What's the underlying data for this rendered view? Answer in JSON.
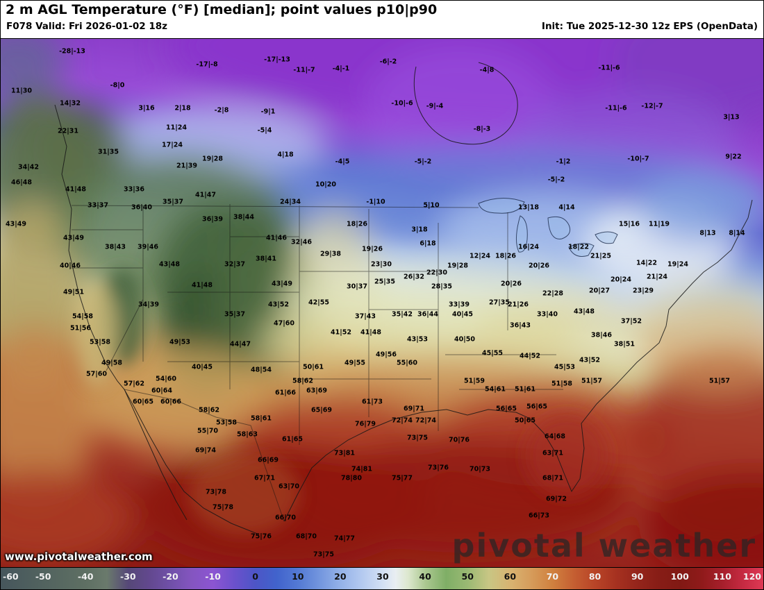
{
  "header": {
    "title": "2 m AGL Temperature (°F) [median]; point values p10|p90",
    "valid": "F078 Valid: Fri 2026-01-02 18z",
    "init": "Init: Tue 2025-12-30 12z EPS (OpenData)"
  },
  "watermark": {
    "site": "www.pivotalweather.com",
    "brand": "pivotal weather"
  },
  "colorbar": {
    "min": -60,
    "max": 120,
    "unit": "°F",
    "tick_values": [
      -60,
      -50,
      -40,
      -30,
      -20,
      -10,
      0,
      10,
      20,
      30,
      40,
      50,
      60,
      70,
      80,
      90,
      100,
      110,
      120
    ],
    "stops": [
      [
        0,
        "#46565c"
      ],
      [
        5.6,
        "#52635f"
      ],
      [
        11.1,
        "#5e6f63"
      ],
      [
        13.9,
        "#6a7a6c"
      ],
      [
        16.7,
        "#564878"
      ],
      [
        19.4,
        "#62488e"
      ],
      [
        22.2,
        "#7050a8"
      ],
      [
        25,
        "#8455c0"
      ],
      [
        27.8,
        "#8c55d2"
      ],
      [
        30.6,
        "#6b51cc"
      ],
      [
        33.3,
        "#4d55c6"
      ],
      [
        36.1,
        "#4163cc"
      ],
      [
        38.9,
        "#5379d4"
      ],
      [
        41.7,
        "#7295de"
      ],
      [
        44.4,
        "#93b1e8"
      ],
      [
        47.2,
        "#b3c9f0"
      ],
      [
        50,
        "#d3e0f4"
      ],
      [
        51.7,
        "#e9eef2"
      ],
      [
        53.3,
        "#dde8cf"
      ],
      [
        55.6,
        "#abc890"
      ],
      [
        58.3,
        "#7fae66"
      ],
      [
        61.1,
        "#9ab973"
      ],
      [
        63.9,
        "#c8c684"
      ],
      [
        66.7,
        "#d8b371"
      ],
      [
        69.4,
        "#d69c5b"
      ],
      [
        72.2,
        "#d0813f"
      ],
      [
        75,
        "#c55f32"
      ],
      [
        77.8,
        "#b84427"
      ],
      [
        80.6,
        "#a63120"
      ],
      [
        83.3,
        "#95251b"
      ],
      [
        86.1,
        "#871d16"
      ],
      [
        88.9,
        "#811914"
      ],
      [
        91.7,
        "#8f1a1a"
      ],
      [
        94.4,
        "#a61f2b"
      ],
      [
        97.2,
        "#c62a42"
      ],
      [
        100,
        "#e03a56"
      ]
    ]
  },
  "map": {
    "point_values": [
      [
        103,
        73,
        "-28|-13"
      ],
      [
        297,
        92,
        "-17|-8"
      ],
      [
        398,
        85,
        "-17|-13"
      ],
      [
        437,
        100,
        "-11|-7"
      ],
      [
        490,
        98,
        "-4|-1"
      ],
      [
        558,
        88,
        "-6|-2"
      ],
      [
        700,
        100,
        "-4|8"
      ],
      [
        876,
        97,
        "-11|-6"
      ],
      [
        30,
        130,
        "11|30"
      ],
      [
        168,
        122,
        "-8|0"
      ],
      [
        100,
        148,
        "14|32"
      ],
      [
        210,
        155,
        "3|16"
      ],
      [
        262,
        155,
        "2|18"
      ],
      [
        318,
        158,
        "-2|8"
      ],
      [
        385,
        160,
        "-9|1"
      ],
      [
        97,
        188,
        "22|31"
      ],
      [
        253,
        183,
        "11|24"
      ],
      [
        380,
        187,
        "-5|4"
      ],
      [
        578,
        148,
        "-10|-6"
      ],
      [
        625,
        152,
        "-9|-4"
      ],
      [
        886,
        155,
        "-11|-6"
      ],
      [
        938,
        152,
        "-12|-7"
      ],
      [
        1052,
        168,
        "3|13"
      ],
      [
        155,
        218,
        "31|35"
      ],
      [
        247,
        208,
        "17|24"
      ],
      [
        268,
        238,
        "21|39"
      ],
      [
        305,
        228,
        "19|28"
      ],
      [
        410,
        222,
        "4|18"
      ],
      [
        693,
        185,
        "-8|-3"
      ],
      [
        608,
        232,
        "-5|-2"
      ],
      [
        810,
        232,
        "-1|2"
      ],
      [
        918,
        228,
        "-10|-7"
      ],
      [
        1055,
        225,
        "9|22"
      ],
      [
        492,
        232,
        "-4|5"
      ],
      [
        40,
        240,
        "34|42"
      ],
      [
        30,
        262,
        "46|48"
      ],
      [
        108,
        272,
        "41|48"
      ],
      [
        192,
        272,
        "33|36"
      ],
      [
        140,
        295,
        "33|37"
      ],
      [
        203,
        298,
        "36|40"
      ],
      [
        248,
        290,
        "35|37"
      ],
      [
        295,
        280,
        "41|47"
      ],
      [
        417,
        290,
        "24|34"
      ],
      [
        468,
        265,
        "10|20"
      ],
      [
        540,
        290,
        "-1|10"
      ],
      [
        620,
        295,
        "5|10"
      ],
      [
        760,
        298,
        "13|18"
      ],
      [
        815,
        298,
        "4|14"
      ],
      [
        800,
        258,
        "-5|-2"
      ],
      [
        905,
        322,
        "15|16"
      ],
      [
        948,
        322,
        "11|19"
      ],
      [
        1018,
        335,
        "8|13"
      ],
      [
        1060,
        335,
        "8|14"
      ],
      [
        22,
        322,
        "43|49"
      ],
      [
        105,
        342,
        "43|49"
      ],
      [
        165,
        355,
        "38|43"
      ],
      [
        212,
        355,
        "39|46"
      ],
      [
        305,
        315,
        "36|39"
      ],
      [
        350,
        312,
        "38|44"
      ],
      [
        397,
        342,
        "41|46"
      ],
      [
        433,
        348,
        "32|46"
      ],
      [
        513,
        322,
        "18|26"
      ],
      [
        603,
        330,
        "3|18"
      ],
      [
        615,
        350,
        "6|18"
      ],
      [
        475,
        365,
        "29|38"
      ],
      [
        535,
        358,
        "19|26"
      ],
      [
        548,
        380,
        "23|30"
      ],
      [
        690,
        368,
        "12|24"
      ],
      [
        727,
        368,
        "18|26"
      ],
      [
        760,
        355,
        "16|24"
      ],
      [
        832,
        355,
        "18|22"
      ],
      [
        864,
        368,
        "21|25"
      ],
      [
        930,
        378,
        "14|22"
      ],
      [
        975,
        380,
        "19|24"
      ],
      [
        100,
        382,
        "40|46"
      ],
      [
        243,
        380,
        "43|48"
      ],
      [
        337,
        380,
        "32|37"
      ],
      [
        382,
        372,
        "38|41"
      ],
      [
        405,
        408,
        "43|49"
      ],
      [
        290,
        410,
        "41|48"
      ],
      [
        553,
        405,
        "25|35"
      ],
      [
        513,
        412,
        "30|37"
      ],
      [
        595,
        398,
        "26|32"
      ],
      [
        628,
        392,
        "22|30"
      ],
      [
        658,
        382,
        "19|28"
      ],
      [
        775,
        382,
        "20|26"
      ],
      [
        745,
        438,
        "21|26"
      ],
      [
        735,
        408,
        "20|26"
      ],
      [
        795,
        422,
        "22|28"
      ],
      [
        862,
        418,
        "20|27"
      ],
      [
        893,
        402,
        "20|24"
      ],
      [
        925,
        418,
        "23|29"
      ],
      [
        945,
        398,
        "21|24"
      ],
      [
        105,
        420,
        "49|51"
      ],
      [
        213,
        438,
        "34|39"
      ],
      [
        337,
        452,
        "35|37"
      ],
      [
        400,
        438,
        "43|52"
      ],
      [
        458,
        435,
        "42|55"
      ],
      [
        635,
        412,
        "28|35"
      ],
      [
        660,
        438,
        "33|39"
      ],
      [
        718,
        435,
        "27|35"
      ],
      [
        408,
        465,
        "47|60"
      ],
      [
        525,
        455,
        "37|43"
      ],
      [
        578,
        452,
        "35|42"
      ],
      [
        615,
        452,
        "36|44"
      ],
      [
        665,
        452,
        "40|45"
      ],
      [
        748,
        468,
        "36|43"
      ],
      [
        787,
        452,
        "33|40"
      ],
      [
        840,
        448,
        "43|48"
      ],
      [
        865,
        482,
        "38|46"
      ],
      [
        908,
        462,
        "37|52"
      ],
      [
        898,
        495,
        "38|51"
      ],
      [
        118,
        455,
        "54|58"
      ],
      [
        115,
        472,
        "51|56"
      ],
      [
        143,
        492,
        "53|58"
      ],
      [
        258,
        492,
        "49|53"
      ],
      [
        345,
        495,
        "44|47"
      ],
      [
        490,
        478,
        "41|52"
      ],
      [
        533,
        478,
        "41|48"
      ],
      [
        600,
        488,
        "43|53"
      ],
      [
        668,
        488,
        "40|50"
      ],
      [
        555,
        510,
        "49|56"
      ],
      [
        585,
        522,
        "55|60"
      ],
      [
        510,
        522,
        "49|55"
      ],
      [
        708,
        508,
        "45|55"
      ],
      [
        762,
        512,
        "44|52"
      ],
      [
        812,
        528,
        "45|53"
      ],
      [
        848,
        518,
        "43|52"
      ],
      [
        160,
        522,
        "49|58"
      ],
      [
        238,
        545,
        "54|60"
      ],
      [
        290,
        528,
        "40|45"
      ],
      [
        375,
        532,
        "48|54"
      ],
      [
        450,
        528,
        "50|61"
      ],
      [
        138,
        538,
        "57|60"
      ],
      [
        192,
        552,
        "57|62"
      ],
      [
        232,
        562,
        "60|64"
      ],
      [
        435,
        548,
        "58|62"
      ],
      [
        682,
        548,
        "51|59"
      ],
      [
        712,
        560,
        "54|61"
      ],
      [
        755,
        560,
        "51|61"
      ],
      [
        808,
        552,
        "51|58"
      ],
      [
        851,
        548,
        "51|57"
      ],
      [
        1035,
        548,
        "51|57"
      ],
      [
        205,
        578,
        "60|65"
      ],
      [
        245,
        578,
        "60|66"
      ],
      [
        300,
        590,
        "58|62"
      ],
      [
        410,
        565,
        "61|66"
      ],
      [
        455,
        562,
        "63|69"
      ],
      [
        462,
        590,
        "65|69"
      ],
      [
        535,
        578,
        "61|73"
      ],
      [
        595,
        588,
        "69|71"
      ],
      [
        728,
        588,
        "56|65"
      ],
      [
        772,
        585,
        "56|65"
      ],
      [
        755,
        605,
        "50|65"
      ],
      [
        325,
        608,
        "53|58"
      ],
      [
        375,
        602,
        "58|61"
      ],
      [
        525,
        610,
        "76|79"
      ],
      [
        578,
        605,
        "72|74"
      ],
      [
        612,
        605,
        "72|74"
      ],
      [
        298,
        620,
        "55|70"
      ],
      [
        355,
        625,
        "58|63"
      ],
      [
        420,
        632,
        "61|65"
      ],
      [
        600,
        630,
        "73|75"
      ],
      [
        660,
        633,
        "70|76"
      ],
      [
        295,
        648,
        "69|74"
      ],
      [
        385,
        662,
        "66|69"
      ],
      [
        495,
        652,
        "73|81"
      ],
      [
        520,
        675,
        "74|81"
      ],
      [
        630,
        673,
        "73|76"
      ],
      [
        690,
        675,
        "70|73"
      ],
      [
        795,
        652,
        "63|71"
      ],
      [
        798,
        628,
        "64|68"
      ],
      [
        578,
        688,
        "75|77"
      ],
      [
        380,
        688,
        "67|71"
      ],
      [
        415,
        700,
        "63|70"
      ],
      [
        505,
        688,
        "78|80"
      ],
      [
        310,
        708,
        "73|78"
      ],
      [
        320,
        730,
        "75|78"
      ],
      [
        410,
        745,
        "66|70"
      ],
      [
        440,
        772,
        "68|70"
      ],
      [
        375,
        772,
        "75|76"
      ],
      [
        465,
        798,
        "73|75"
      ],
      [
        495,
        775,
        "74|77"
      ],
      [
        795,
        688,
        "68|71"
      ],
      [
        800,
        718,
        "69|72"
      ],
      [
        775,
        742,
        "66|73"
      ]
    ]
  }
}
